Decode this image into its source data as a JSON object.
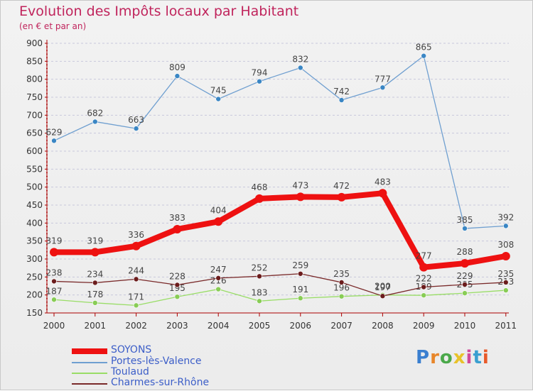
{
  "header": {
    "title": "Evolution des Impôts locaux par Habitant",
    "subtitle": "(en € et par an)"
  },
  "logo": {
    "text": "Proxiti"
  },
  "colors": {
    "title": "#c0245c",
    "legend_text": "#3c5ec8",
    "axis": "#aa0000",
    "grid": "#c8c8dc"
  },
  "chart_data": {
    "type": "line",
    "title": "Evolution des Impôts locaux par Habitant",
    "subtitle": "(en € et par an)",
    "xlabel": "",
    "ylabel": "",
    "categories": [
      "2000",
      "2001",
      "2002",
      "2003",
      "2004",
      "2005",
      "2006",
      "2007",
      "2008",
      "2009",
      "2010",
      "2011"
    ],
    "ylim": [
      150,
      900
    ],
    "yticks": [
      150,
      200,
      250,
      300,
      350,
      400,
      450,
      500,
      550,
      600,
      650,
      700,
      750,
      800,
      850,
      900
    ],
    "grid": "horizontal",
    "legend_position": "bottom-left",
    "series": [
      {
        "name": "Portes-lès-Valence",
        "color": "#6f9fd0",
        "marker": "#3a86c4",
        "values": [
          629,
          682,
          663,
          809,
          745,
          794,
          832,
          742,
          777,
          865,
          385,
          392
        ],
        "labels": [
          "629",
          "682",
          "663",
          "809",
          "745",
          "794",
          "832",
          "742",
          "777",
          "865",
          "385",
          "392"
        ]
      },
      {
        "name": "Toulaud",
        "color": "#99dd66",
        "marker": "#88cc55",
        "values": [
          187,
          178,
          171,
          195,
          216,
          183,
          191,
          196,
          200,
          199,
          205,
          213
        ],
        "labels": [
          "187",
          "178",
          "171",
          "195",
          "216",
          "183",
          "191",
          "196",
          "200",
          "199",
          "205",
          "213"
        ]
      },
      {
        "name": "Charmes-sur-Rhône",
        "color": "#7a2a2a",
        "marker": "#6b1c1c",
        "values": [
          238,
          234,
          244,
          228,
          247,
          252,
          259,
          235,
          197,
          222,
          229,
          235
        ],
        "labels": [
          "238",
          "234",
          "244",
          "228",
          "247",
          "252",
          "259",
          "235",
          "197",
          "222",
          "229",
          "235"
        ]
      },
      {
        "name": "SOYONS",
        "color": "#ee1111",
        "marker": "#ee1111",
        "values": [
          319,
          319,
          336,
          383,
          404,
          468,
          473,
          472,
          483,
          277,
          288,
          308
        ],
        "labels": [
          "319",
          "319",
          "336",
          "383",
          "404",
          "468",
          "473",
          "472",
          "483",
          "277",
          "288",
          "308"
        ]
      }
    ],
    "legend": [
      "SOYONS",
      "Portes-lès-Valence",
      "Toulaud",
      "Charmes-sur-Rhône"
    ]
  }
}
